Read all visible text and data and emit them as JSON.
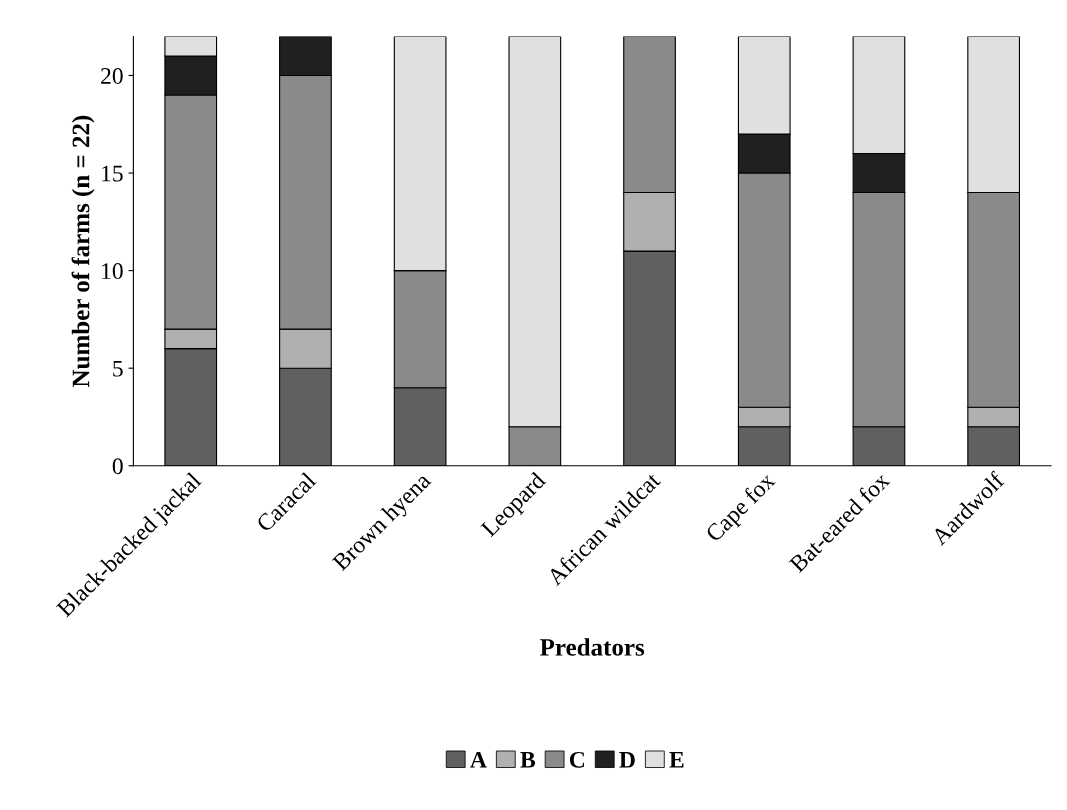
{
  "chart_data": {
    "type": "bar",
    "stacked": true,
    "xlabel": "Predators",
    "ylabel": "Number of farms (n = 22)",
    "categories": [
      "Black-backed jackal",
      "Caracal",
      "Brown hyena",
      "Leopard",
      "African wildcat",
      "Cape fox",
      "Bat-eared fox",
      "Aardwolf"
    ],
    "series": [
      {
        "name": "A",
        "color": "#606060",
        "values": [
          6,
          5,
          4,
          0,
          11,
          2,
          2,
          2
        ]
      },
      {
        "name": "B",
        "color": "#b0b0b0",
        "values": [
          1,
          2,
          0,
          0,
          3,
          1,
          0,
          1
        ]
      },
      {
        "name": "C",
        "color": "#8a8a8a",
        "values": [
          12,
          13,
          6,
          2,
          8,
          12,
          12,
          11
        ]
      },
      {
        "name": "D",
        "color": "#202020",
        "values": [
          2,
          2,
          0,
          0,
          0,
          2,
          2,
          0
        ]
      },
      {
        "name": "E",
        "color": "#e0e0e0",
        "values": [
          1,
          0,
          12,
          20,
          0,
          5,
          6,
          8
        ]
      }
    ],
    "ylim": [
      0,
      22
    ],
    "yticks": [
      0,
      5,
      10,
      15,
      20
    ],
    "grid": false,
    "legend": "bottom"
  }
}
